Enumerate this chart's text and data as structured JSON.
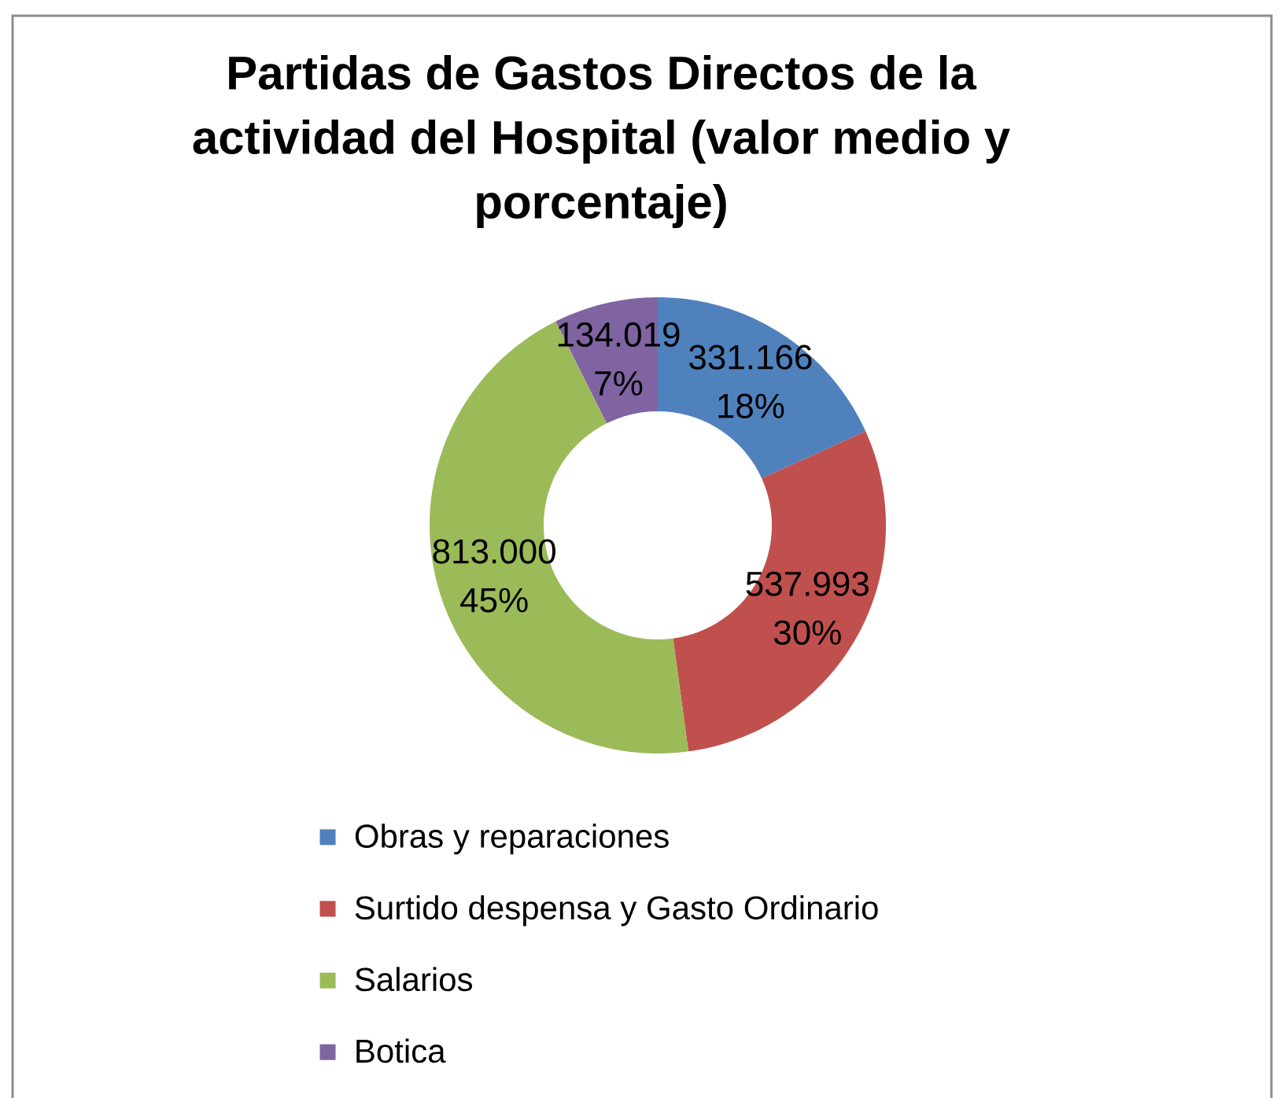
{
  "chart_data": {
    "type": "donut",
    "title": "Partidas de Gastos Directos de la actividad del Hospital (valor medio y porcentaje)",
    "categories": [
      "Obras y reparaciones",
      "Surtido despensa y Gasto Ordinario",
      "Salarios",
      "Botica"
    ],
    "values": [
      331166,
      537993,
      813000,
      134019
    ],
    "colors": [
      "#4f81bd",
      "#c0504d",
      "#9bbb59",
      "#8064a2"
    ],
    "value_labels": [
      "331.166 18%",
      "537.993 30%",
      "813.000 45%",
      "134.019 7%"
    ],
    "legend": "bottom"
  }
}
